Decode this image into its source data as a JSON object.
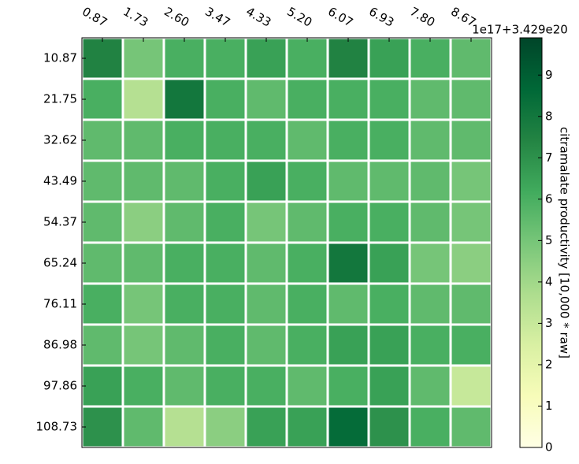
{
  "chart_data": {
    "type": "heatmap",
    "x_ticks_labels": [
      "0.87",
      "1.73",
      "2.60",
      "3.47",
      "4.33",
      "5.20",
      "6.07",
      "6.93",
      "7.80",
      "8.67"
    ],
    "y_ticks_labels": [
      "10.87",
      "21.75",
      "32.62",
      "43.49",
      "54.37",
      "65.24",
      "76.11",
      "86.98",
      "97.86",
      "108.73"
    ],
    "values": [
      [
        7.5,
        5,
        6,
        6,
        6.5,
        6,
        7.5,
        6.5,
        6,
        5.5
      ],
      [
        6,
        3.5,
        8,
        6,
        5.5,
        6,
        6,
        6,
        5.5,
        5.5
      ],
      [
        5.5,
        5.5,
        6,
        6,
        6,
        5.5,
        6,
        6,
        5.5,
        5.5
      ],
      [
        5.5,
        5.5,
        5.5,
        6,
        6.5,
        6,
        5.5,
        5.5,
        5.5,
        5
      ],
      [
        5.5,
        4.5,
        5.5,
        6,
        5,
        5.5,
        6,
        6,
        5.5,
        5
      ],
      [
        5.5,
        5.5,
        6,
        6,
        5.5,
        6,
        8,
        6.5,
        5,
        4.5
      ],
      [
        6,
        5,
        6,
        6,
        5.5,
        6,
        5.5,
        6,
        5.5,
        5.5
      ],
      [
        5.5,
        5,
        5.5,
        6,
        5.5,
        6,
        6.5,
        6.5,
        6,
        6
      ],
      [
        6.5,
        6,
        5.5,
        6,
        6,
        5.5,
        6,
        6.5,
        5.5,
        3
      ],
      [
        7,
        5.5,
        3.5,
        4.5,
        6.5,
        6.5,
        8.5,
        7,
        6,
        5.5
      ]
    ],
    "colormap": [
      "#ffffe5",
      "#f7fcb9",
      "#d9f0a3",
      "#addd8e",
      "#78c679",
      "#41ab5d",
      "#238443",
      "#006837",
      "#004529"
    ],
    "clim": [
      0,
      9.9
    ],
    "colorbar_ticks": [
      0,
      1,
      2,
      3,
      4,
      5,
      6,
      7,
      8,
      9
    ],
    "colorbar_offset_label": "1e17+3.429e20",
    "colorbar_label": "citramalate productivity [10,000 * raw]"
  }
}
